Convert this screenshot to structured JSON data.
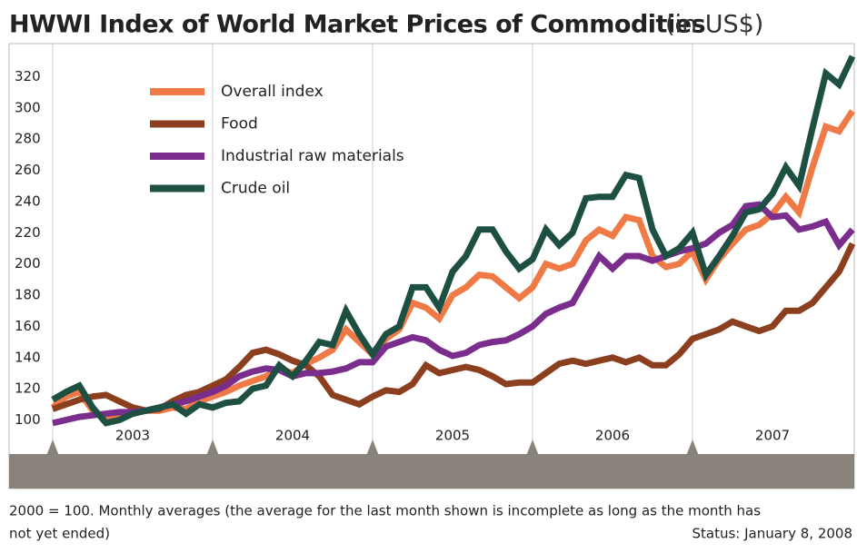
{
  "chart_data": {
    "type": "line",
    "title": "HWWI  Index of World Market Prices of Commodities",
    "subtitle": "(in US$)",
    "footnote": "2000 = 100. Monthly averages (the average for the last month shown is incomplete as long as the month has",
    "footnote2": "not yet ended)",
    "status": "Status: January 8, 2008",
    "categories": [
      null,
      null,
      null,
      null,
      null,
      null,
      "2003",
      null,
      null,
      null,
      null,
      null,
      null,
      null,
      null,
      null,
      null,
      null,
      "2004",
      null,
      null,
      null,
      null,
      null,
      null,
      null,
      null,
      null,
      null,
      null,
      "2005",
      null,
      null,
      null,
      null,
      null,
      null,
      null,
      null,
      null,
      null,
      null,
      "2006",
      null,
      null,
      null,
      null,
      null,
      null,
      null,
      null,
      null,
      null,
      null,
      "2007",
      null,
      null,
      null,
      null,
      null,
      null
    ],
    "ylim": [
      84,
      340
    ],
    "yticks": [
      100,
      120,
      140,
      160,
      180,
      200,
      220,
      240,
      260,
      280,
      300,
      320
    ],
    "grid": false,
    "legend": "upper left",
    "series": [
      {
        "name": "Overall index",
        "color": "#f07a45",
        "values": [
          108,
          115,
          118,
          106,
          100,
          102,
          104,
          106,
          106,
          108,
          107,
          112,
          115,
          118,
          122,
          125,
          128,
          133,
          130,
          136,
          140,
          145,
          158,
          150,
          142,
          152,
          158,
          175,
          172,
          165,
          180,
          185,
          193,
          192,
          185,
          178,
          185,
          200,
          197,
          200,
          215,
          222,
          218,
          230,
          228,
          205,
          198,
          200,
          208,
          190,
          203,
          213,
          222,
          225,
          232,
          243,
          233,
          262,
          288,
          285,
          298
        ]
      },
      {
        "name": "Food",
        "color": "#8b3f1f",
        "values": [
          107,
          110,
          113,
          115,
          116,
          112,
          108,
          106,
          107,
          112,
          116,
          118,
          122,
          126,
          134,
          143,
          145,
          142,
          138,
          135,
          128,
          116,
          113,
          110,
          115,
          119,
          118,
          123,
          135,
          130,
          132,
          134,
          132,
          128,
          123,
          124,
          124,
          130,
          136,
          138,
          136,
          138,
          140,
          137,
          140,
          135,
          135,
          142,
          152,
          155,
          158,
          163,
          160,
          157,
          160,
          170,
          170,
          175,
          185,
          195,
          213
        ]
      },
      {
        "name": "Industrial raw materials",
        "color": "#7b2d8e",
        "values": [
          98,
          100,
          102,
          103,
          104,
          105,
          105,
          106,
          108,
          110,
          112,
          115,
          118,
          122,
          128,
          131,
          133,
          132,
          128,
          130,
          130,
          131,
          133,
          137,
          137,
          147,
          150,
          153,
          151,
          145,
          141,
          143,
          148,
          150,
          151,
          155,
          160,
          168,
          172,
          175,
          190,
          205,
          197,
          205,
          205,
          202,
          205,
          208,
          210,
          213,
          220,
          225,
          237,
          238,
          230,
          231,
          222,
          224,
          227,
          212,
          222
        ]
      },
      {
        "name": "Crude oil",
        "color": "#1d4f43",
        "values": [
          113,
          118,
          122,
          108,
          98,
          100,
          104,
          106,
          108,
          110,
          104,
          110,
          108,
          111,
          112,
          120,
          122,
          135,
          128,
          138,
          150,
          148,
          170,
          155,
          142,
          155,
          160,
          185,
          185,
          172,
          195,
          205,
          222,
          222,
          208,
          197,
          203,
          222,
          212,
          220,
          242,
          243,
          243,
          257,
          255,
          222,
          205,
          210,
          220,
          193,
          205,
          218,
          233,
          235,
          245,
          262,
          250,
          287,
          322,
          315,
          333
        ]
      }
    ]
  }
}
